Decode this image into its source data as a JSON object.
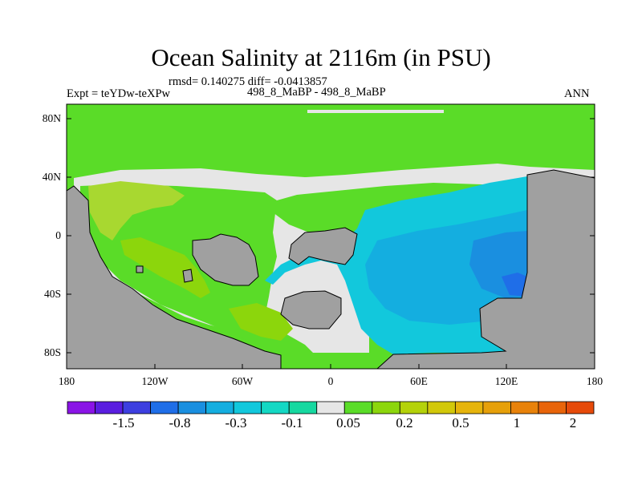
{
  "title": "Ocean Salinity at 2116m (in PSU)",
  "stats_line": "rmsd= 0.140275 diff= -0.0413857",
  "left_label": "Expt = teYDw-teXPw",
  "center_label": "498_8_MaBP - 498_8_MaBP",
  "right_label": "ANN",
  "y_ticks": [
    "80N",
    "40N",
    "0",
    "40S",
    "80S"
  ],
  "x_ticks": [
    "180",
    "120W",
    "60W",
    "0",
    "60E",
    "120E",
    "180"
  ],
  "colorbar": {
    "colors": [
      "#8a14e6",
      "#5a1ee0",
      "#3d3fe0",
      "#1f6ee8",
      "#1a8fe0",
      "#14aee0",
      "#12c8dc",
      "#14d8c4",
      "#16d8a0",
      "#e6e6e6",
      "#5adc28",
      "#8cd60c",
      "#b4d20a",
      "#d2c80a",
      "#e6b40c",
      "#e6a00a",
      "#e8820a",
      "#e8640a",
      "#e64a0a"
    ],
    "labels": [
      "-1.5",
      "-0.8",
      "-0.3",
      "-0.1",
      "0.05",
      "0.2",
      "0.5",
      "1",
      "2"
    ]
  },
  "map_colors": {
    "land": "#a0a0a0",
    "green_main": "#5adc28",
    "yellow_green": "#8cd60c",
    "light_green": "#a8d830",
    "neutral": "#e6e6e6",
    "cyan": "#12c8dc",
    "light_blue": "#14aee0",
    "blue": "#1a8fe0",
    "dark_blue": "#1f6ee8"
  }
}
